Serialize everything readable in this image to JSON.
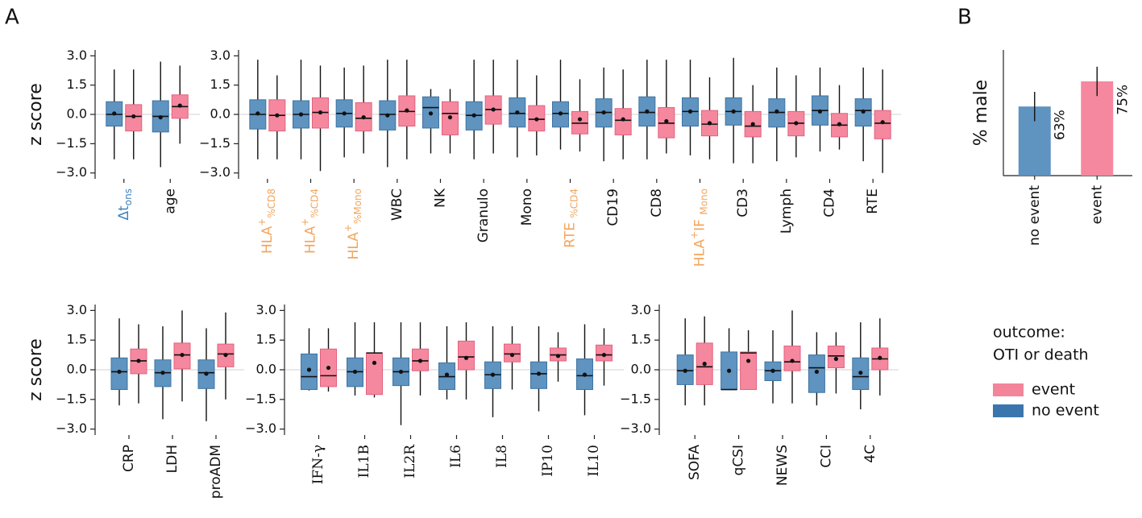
{
  "panel_labels": [
    "A",
    "B"
  ],
  "legend": {
    "title_lines": [
      "outcome:",
      "OTI or death"
    ],
    "entries": [
      {
        "name": "event",
        "color": "#f4849a"
      },
      {
        "name": "no event",
        "color": "#3a76ad"
      }
    ]
  },
  "chart_data": [
    {
      "type": "box",
      "ylabel": "z score",
      "label_color": "#3f81b8",
      "zero_line": true,
      "categories": [
        [
          {
            "text": "Δt"
          },
          {
            "text": "ons",
            "script": "sub"
          }
        ],
        "age"
      ],
      "ylim": [
        -3.3,
        3.3
      ],
      "yticks": [
        {
          "value": 3,
          "label": "3.0"
        },
        {
          "value": 1.5,
          "label": "1.5"
        },
        {
          "value": 0,
          "label": "0.0"
        },
        {
          "value": -1.5,
          "label": "−1.5"
        },
        {
          "value": -3,
          "label": "−3.0"
        }
      ],
      "series": [
        {
          "color": "#5f93c0",
          "stroke": "#3f74a3",
          "q1": [
            -0.6,
            -0.9
          ],
          "median": [
            0.0,
            -0.1
          ],
          "q3": [
            0.65,
            0.7
          ],
          "whislo": [
            -2.3,
            -2.7
          ],
          "whishi": [
            2.3,
            2.7
          ],
          "mean": [
            0.05,
            -0.15
          ]
        },
        {
          "color": "#f5889e",
          "stroke": "#e2627f",
          "q1": [
            -0.85,
            -0.2
          ],
          "median": [
            -0.1,
            0.4
          ],
          "q3": [
            0.5,
            1.0
          ],
          "whislo": [
            -2.3,
            -1.5
          ],
          "whishi": [
            2.3,
            2.5
          ],
          "mean": [
            -0.1,
            0.45
          ]
        }
      ]
    },
    {
      "type": "box",
      "label_color": "#f2a65e",
      "zero_line": true,
      "categories": [
        [
          {
            "text": "HLA"
          },
          {
            "text": "+",
            "script": "sup"
          },
          {
            "text": "%CD8",
            "script": "sub"
          }
        ],
        [
          {
            "text": "HLA"
          },
          {
            "text": "+",
            "script": "sup"
          },
          {
            "text": "%CD4",
            "script": "sub"
          }
        ],
        [
          {
            "text": "HLA"
          },
          {
            "text": "+",
            "script": "sup"
          },
          {
            "text": "%Mono",
            "script": "sub"
          }
        ],
        "WBC",
        "NK",
        "Granulo",
        "Mono",
        [
          {
            "text": "RTE "
          },
          {
            "text": "%CD4",
            "script": "sub"
          }
        ],
        "CD19",
        "CD8",
        [
          {
            "text": "HLA"
          },
          {
            "text": "+",
            "script": "sup"
          },
          {
            "text": "IF "
          },
          {
            "text": "Mono",
            "script": "sub"
          }
        ],
        "CD3",
        "Lymph",
        "CD4",
        "RTE"
      ],
      "ylim": [
        -3.3,
        3.3
      ],
      "yticks": [
        {
          "value": 3,
          "label": "3.0"
        },
        {
          "value": 1.5,
          "label": "1.5"
        },
        {
          "value": 0,
          "label": "0.0"
        },
        {
          "value": -1.5,
          "label": "−1.5"
        },
        {
          "value": -3,
          "label": "−3.0"
        }
      ],
      "series": [
        {
          "color": "#5f93c0",
          "stroke": "#3f74a3",
          "q1": [
            -0.75,
            -0.7,
            -0.65,
            -0.8,
            -0.7,
            -0.8,
            -0.65,
            -0.65,
            -0.65,
            -0.6,
            -0.6,
            -0.55,
            -0.65,
            -0.55,
            -0.6
          ],
          "median": [
            0,
            0,
            0.05,
            0,
            0.35,
            -0.05,
            0.05,
            0.05,
            0.1,
            0.1,
            0.15,
            0.15,
            0.1,
            0.2,
            0.2
          ],
          "q3": [
            0.75,
            0.7,
            0.75,
            0.7,
            0.9,
            0.65,
            0.85,
            0.65,
            0.8,
            0.9,
            0.85,
            0.85,
            0.8,
            0.95,
            0.8
          ],
          "whislo": [
            -2.3,
            -2.3,
            -2.2,
            -2.7,
            -2.0,
            -2.3,
            -2.2,
            -1.8,
            -2.4,
            -2.3,
            -2.1,
            -2.5,
            -2.4,
            -1.9,
            -2.4
          ],
          "whishi": [
            2.8,
            2.8,
            2.4,
            2.8,
            1.3,
            2.8,
            2.8,
            2.8,
            2.4,
            2.8,
            2.8,
            2.9,
            2.4,
            2.4,
            2.4
          ],
          "mean": [
            0.05,
            0,
            0.05,
            -0.05,
            0.05,
            -0.05,
            0.1,
            0.05,
            0.1,
            0.15,
            0.15,
            0.15,
            0.15,
            0.15,
            0.15
          ]
        },
        {
          "color": "#f5889e",
          "stroke": "#e2627f",
          "q1": [
            -0.85,
            -0.7,
            -0.85,
            -0.6,
            -1.05,
            -0.5,
            -0.85,
            -1.0,
            -1.05,
            -1.2,
            -1.1,
            -1.15,
            -1.1,
            -1.15,
            -1.25
          ],
          "median": [
            -0.05,
            0.1,
            -0.2,
            0.15,
            0.05,
            0.25,
            -0.25,
            -0.45,
            -0.3,
            -0.45,
            -0.5,
            -0.6,
            -0.45,
            -0.55,
            -0.45
          ],
          "q3": [
            0.75,
            0.85,
            0.6,
            0.95,
            0.65,
            0.95,
            0.45,
            0.15,
            0.3,
            0.35,
            0.2,
            0.15,
            0.15,
            0.05,
            0.2
          ],
          "whislo": [
            -2.3,
            -2.9,
            -2.0,
            -2.3,
            -2.0,
            -2.0,
            -2.1,
            -1.9,
            -2.3,
            -2.0,
            -2.3,
            -2.5,
            -2.2,
            -1.8,
            -3.0
          ],
          "whishi": [
            2.0,
            2.5,
            2.5,
            2.8,
            1.3,
            2.8,
            2.0,
            1.8,
            2.3,
            2.8,
            1.9,
            1.5,
            2.0,
            1.5,
            2.3
          ],
          "mean": [
            -0.05,
            0.1,
            -0.15,
            0.2,
            -0.15,
            0.25,
            -0.25,
            -0.25,
            -0.25,
            -0.35,
            -0.45,
            -0.5,
            -0.45,
            -0.5,
            -0.4
          ]
        }
      ]
    },
    {
      "type": "box",
      "ylabel": "z score",
      "label_color": "#c6a6d8",
      "zero_line": true,
      "categories": [
        "CRP",
        "LDH",
        "proADM"
      ],
      "ylim": [
        -3.3,
        3.3
      ],
      "yticks": [
        {
          "value": 3,
          "label": "3.0"
        },
        {
          "value": 1.5,
          "label": "1.5"
        },
        {
          "value": 0,
          "label": "0.0"
        },
        {
          "value": -1.5,
          "label": "−1.5"
        },
        {
          "value": -3,
          "label": "−3.0"
        }
      ],
      "series": [
        {
          "color": "#5f93c0",
          "stroke": "#3f74a3",
          "q1": [
            -1.0,
            -0.85,
            -0.95
          ],
          "median": [
            -0.1,
            -0.15,
            -0.15
          ],
          "q3": [
            0.6,
            0.5,
            0.5
          ],
          "whislo": [
            -1.8,
            -2.5,
            -2.6
          ],
          "whishi": [
            2.6,
            2.2,
            2.1
          ],
          "mean": [
            -0.1,
            -0.15,
            -0.2
          ]
        },
        {
          "color": "#f5889e",
          "stroke": "#e2627f",
          "q1": [
            -0.2,
            0.05,
            0.15
          ],
          "median": [
            0.45,
            0.75,
            0.8
          ],
          "q3": [
            1.05,
            1.35,
            1.3
          ],
          "whislo": [
            -1.7,
            -1.6,
            -1.5
          ],
          "whishi": [
            2.3,
            3.0,
            2.9
          ],
          "mean": [
            0.45,
            0.75,
            0.75
          ]
        }
      ]
    },
    {
      "type": "box",
      "label_color": "#ef5d7f",
      "label_font": "serif",
      "zero_line": true,
      "categories": [
        "IFN-γ",
        "IL1B",
        "IL2R",
        "IL6",
        "IL8",
        "IP10",
        "IL10"
      ],
      "ylim": [
        -3.3,
        3.3
      ],
      "yticks": [
        {
          "value": 3,
          "label": "3.0"
        },
        {
          "value": 1.5,
          "label": "1.5"
        },
        {
          "value": 0,
          "label": "0.0"
        },
        {
          "value": -1.5,
          "label": "−1.5"
        },
        {
          "value": -3,
          "label": "−3.0"
        }
      ],
      "series": [
        {
          "color": "#5f93c0",
          "stroke": "#3f74a3",
          "q1": [
            -1.0,
            -0.85,
            -0.8,
            -1.0,
            -0.95,
            -0.95,
            -1.0
          ],
          "median": [
            -0.35,
            -0.1,
            -0.1,
            -0.35,
            -0.25,
            -0.2,
            -0.3
          ],
          "q3": [
            0.8,
            0.6,
            0.6,
            0.35,
            0.4,
            0.4,
            0.55
          ],
          "whislo": [
            -1.05,
            -1.3,
            -2.8,
            -1.5,
            -2.4,
            -2.1,
            -2.3
          ],
          "whishi": [
            2.1,
            2.4,
            2.4,
            2.2,
            2.2,
            2.2,
            2.3
          ],
          "mean": [
            0,
            -0.1,
            -0.1,
            -0.25,
            -0.25,
            -0.2,
            -0.25
          ]
        },
        {
          "color": "#f5889e",
          "stroke": "#e2627f",
          "q1": [
            -0.85,
            -1.25,
            -0.05,
            0,
            0.4,
            0.45,
            0.45
          ],
          "median": [
            -0.3,
            0.85,
            0.45,
            0.65,
            0.8,
            0.75,
            0.75
          ],
          "q3": [
            1.05,
            0.85,
            1.05,
            1.45,
            1.3,
            1.1,
            1.25
          ],
          "whislo": [
            -1.1,
            -1.4,
            -1.3,
            -1.5,
            -1.0,
            -0.6,
            -0.8
          ],
          "whishi": [
            2.1,
            2.4,
            2.4,
            2.4,
            2.2,
            1.9,
            2.1
          ],
          "mean": [
            0.1,
            0.35,
            0.45,
            0.6,
            0.75,
            0.7,
            0.75
          ]
        }
      ]
    },
    {
      "type": "box",
      "label_color": "#ef5d7f",
      "zero_line": true,
      "categories": [
        "SOFA",
        "qCSI",
        "NEWS",
        "CCI",
        "4C"
      ],
      "ylim": [
        -3.3,
        3.3
      ],
      "yticks": [
        {
          "value": 3,
          "label": "3.0"
        },
        {
          "value": 1.5,
          "label": "1.5"
        },
        {
          "value": 0,
          "label": "0.0"
        },
        {
          "value": -1.5,
          "label": "−1.5"
        },
        {
          "value": -3,
          "label": "−3.0"
        }
      ],
      "series": [
        {
          "color": "#5f93c0",
          "stroke": "#3f74a3",
          "q1": [
            -0.75,
            -1.0,
            -0.55,
            -1.15,
            -1.0
          ],
          "median": [
            -0.05,
            -1.0,
            -0.05,
            0.1,
            -0.35
          ],
          "q3": [
            0.75,
            0.9,
            0.4,
            0.75,
            0.6
          ],
          "whislo": [
            -1.8,
            -1.0,
            -1.7,
            -1.8,
            -2.0
          ],
          "whishi": [
            2.6,
            2.1,
            2.0,
            1.9,
            2.4
          ],
          "mean": [
            -0.05,
            -0.05,
            -0.05,
            -0.1,
            -0.15
          ]
        },
        {
          "color": "#f5889e",
          "stroke": "#e2627f",
          "q1": [
            -0.75,
            -1.0,
            -0.05,
            0.1,
            0
          ],
          "median": [
            0.15,
            0.85,
            0.4,
            0.7,
            0.55
          ],
          "q3": [
            1.35,
            0.9,
            1.2,
            1.2,
            1.1
          ],
          "whislo": [
            -1.8,
            -1.0,
            -1.7,
            -1.2,
            -1.3
          ],
          "whishi": [
            2.7,
            2.0,
            3.0,
            1.9,
            2.6
          ],
          "mean": [
            0.3,
            0.45,
            0.45,
            0.55,
            0.6
          ]
        }
      ]
    },
    {
      "type": "bar",
      "ylabel": "% male",
      "categories": [
        "no event",
        "event"
      ],
      "values": [
        63,
        75
      ],
      "value_labels": [
        "63%",
        "75%"
      ],
      "errors": [
        7,
        7
      ],
      "colors": [
        "#5f93c0",
        "#f5889e"
      ],
      "ylim": [
        30,
        90
      ]
    }
  ]
}
